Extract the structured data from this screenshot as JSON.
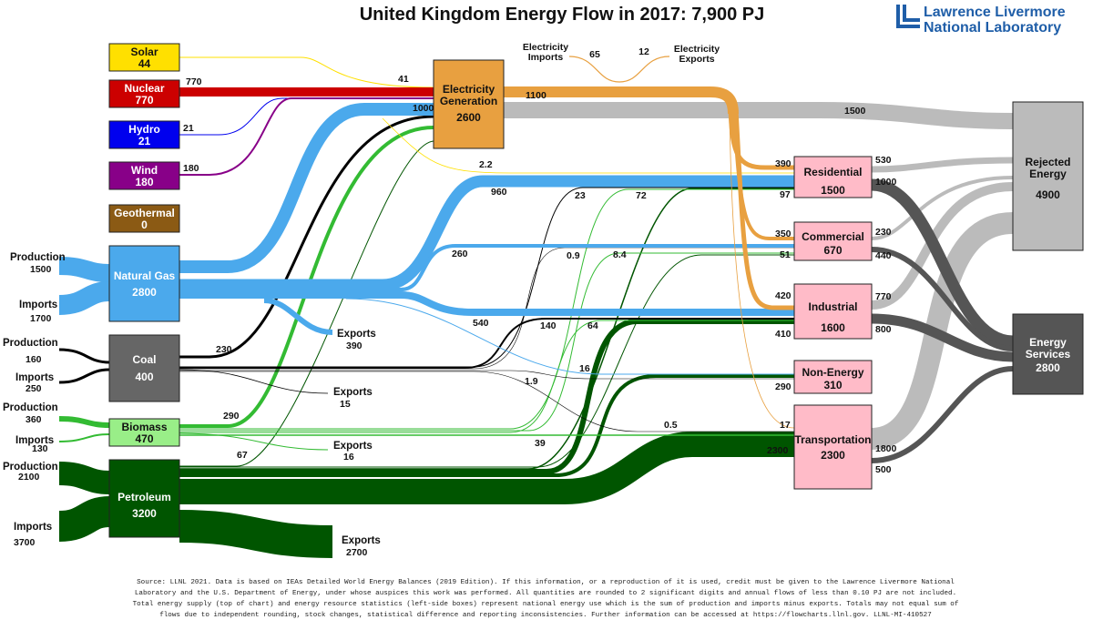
{
  "title": "United Kingdom Energy Flow in 2017: 7,900 PJ",
  "logo": {
    "line1": "Lawrence Livermore",
    "line2": "National Laboratory",
    "color": "#1f5ea8"
  },
  "colors": {
    "solar": "#ffe000",
    "nuclear": "#cc0000",
    "hydro": "#0000ee",
    "wind": "#880088",
    "geothermal": "#8b5a14",
    "natural_gas": "#4ba9ec",
    "coal": "#000000",
    "biomass": "#33bb33",
    "petroleum": "#005500",
    "electricity": "#e8a040",
    "rejected": "#bbbbbb",
    "services": "#555555",
    "sector_box": "#ffbbc8"
  },
  "sources": {
    "solar": {
      "name": "Solar",
      "value": "44"
    },
    "nuclear": {
      "name": "Nuclear",
      "value": "770"
    },
    "hydro": {
      "name": "Hydro",
      "value": "21"
    },
    "wind": {
      "name": "Wind",
      "value": "180"
    },
    "geothermal": {
      "name": "Geothermal",
      "value": "0"
    },
    "natural_gas": {
      "name": "Natural Gas",
      "value": "2800"
    },
    "coal": {
      "name": "Coal",
      "value": "400"
    },
    "biomass": {
      "name": "Biomass",
      "value": "470"
    },
    "petroleum": {
      "name": "Petroleum",
      "value": "3200"
    }
  },
  "electricity": {
    "name_line1": "Electricity",
    "name_line2": "Generation",
    "value": "2600"
  },
  "sectors": {
    "residential": {
      "name": "Residential",
      "value": "1500"
    },
    "commercial": {
      "name": "Commercial",
      "value": "670"
    },
    "industrial": {
      "name": "Industrial",
      "value": "1600"
    },
    "non_energy": {
      "name": "Non-Energy",
      "value": "310"
    },
    "transportation": {
      "name": "Transportation",
      "value": "2300"
    }
  },
  "rejected": {
    "name_line1": "Rejected",
    "name_line2": "Energy",
    "value": "4900"
  },
  "services": {
    "name_line1": "Energy",
    "name_line2": "Services",
    "value": "2800"
  },
  "inputs": {
    "gas_production": {
      "name": "Production",
      "value": "1500"
    },
    "gas_imports": {
      "name": "Imports",
      "value": "1700"
    },
    "coal_production": {
      "name": "Production",
      "value": "160"
    },
    "coal_imports": {
      "name": "Imports",
      "value": "250"
    },
    "bio_production": {
      "name": "Production",
      "value": "360"
    },
    "bio_imports": {
      "name": "Imports",
      "value": "130"
    },
    "pet_production": {
      "name": "Production",
      "value": "2100"
    },
    "pet_imports": {
      "name": "Imports",
      "value": "3700"
    }
  },
  "exports": {
    "gas": {
      "name": "Exports",
      "value": "390"
    },
    "coal": {
      "name": "Exports",
      "value": "15"
    },
    "bio": {
      "name": "Exports",
      "value": "16"
    },
    "pet": {
      "name": "Exports",
      "value": "2700"
    }
  },
  "elec_trade": {
    "imports_line1": "Electricity",
    "imports_line2": "Imports",
    "imports_value": "65",
    "exports_line1": "Electricity",
    "exports_line2": "Exports",
    "exports_value": "12"
  },
  "flow_labels": {
    "solar_elec": "41",
    "nuclear_elec": "770",
    "hydro_elec": "21",
    "wind_elec": "180",
    "gas_elec": "1000",
    "elec_out": "1100",
    "elec_rejected": "1500",
    "solar_res": "2.2",
    "gas_res": "960",
    "gas_com": "260",
    "gas_ind": "540",
    "gas_nonenergy": "16",
    "coal_elec": "230",
    "coal_res": "23",
    "coal_com": "0.9",
    "coal_ind": "140",
    "coal_nonenergy": "1.9",
    "coal_trans": "0.5",
    "bio_elec": "290",
    "bio_res": "72",
    "bio_com": "8.4",
    "bio_ind": "64",
    "bio_trans": "39",
    "pet_elec": "67",
    "pet_res": "97",
    "pet_com": "51",
    "pet_ind": "410",
    "pet_nonenergy": "290",
    "pet_trans": "2300",
    "elec_res": "390",
    "elec_com": "350",
    "elec_ind": "420",
    "elec_trans": "17",
    "res_rej": "530",
    "res_srv": "1000",
    "com_rej": "230",
    "com_srv": "440",
    "ind_rej": "770",
    "ind_srv": "800",
    "trans_rej": "1800",
    "trans_srv": "500"
  },
  "footnote": [
    "Source: LLNL 2021.  Data is based on IEAs Detailed World Energy Balances (2019 Edition).  If this information, or a reproduction of it is used, credit must be given to the Lawrence Livermore National",
    "Laboratory and the U.S. Department of Energy, under whose auspices this work was performed.  All quantities are rounded to 2 significant digits and annual flows of less than 0.10 PJ are not included.",
    "Total energy supply (top of chart) and energy resource statistics (left-side boxes) represent national energy use which is the sum of production and imports minus exports.  Totals may not equal sum of",
    "flows due to independent rounding, stock changes, statistical difference and reporting inconsistencies.  Further information can be accessed at https://flowcharts.llnl.gov.  LLNL-MI-410527"
  ]
}
